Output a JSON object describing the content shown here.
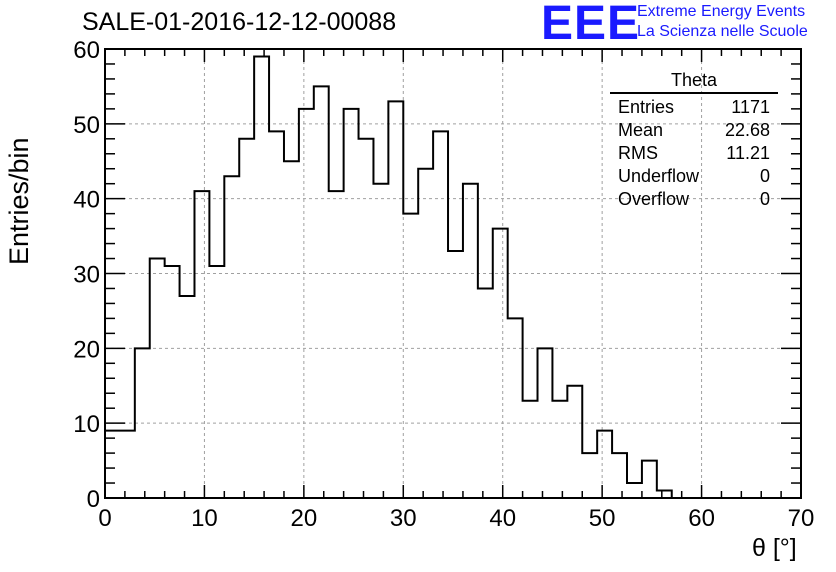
{
  "header": {
    "title": "SALE-01-2016-12-12-00088",
    "logo_mark": "EEE",
    "logo_line1": "Extreme Energy Events",
    "logo_line2": "La Scienza nelle Scuole",
    "logo_color": "#1a1aff"
  },
  "stats_box": {
    "name": "Theta",
    "rows": [
      {
        "label": "Entries",
        "value": "1171"
      },
      {
        "label": "Mean",
        "value": "22.68"
      },
      {
        "label": "RMS",
        "value": "11.21"
      },
      {
        "label": "Underflow",
        "value": "0"
      },
      {
        "label": "Overflow",
        "value": "0"
      }
    ]
  },
  "chart_data": {
    "type": "bar",
    "style": "step-histogram",
    "xlabel": "θ [°]",
    "ylabel": "Entries/bin",
    "xlim": [
      0,
      70
    ],
    "ylim": [
      0,
      60
    ],
    "bin_width": 1.5,
    "bin_start": 0,
    "values": [
      9,
      9,
      20,
      32,
      31,
      27,
      41,
      31,
      43,
      48,
      59,
      49,
      45,
      52,
      55,
      41,
      52,
      48,
      42,
      53,
      38,
      44,
      49,
      33,
      42,
      28,
      36,
      24,
      13,
      20,
      13,
      15,
      6,
      9,
      6,
      2,
      5,
      1
    ],
    "x_ticks": [
      "0",
      "10",
      "20",
      "30",
      "40",
      "50",
      "60",
      "70"
    ],
    "y_ticks": [
      "0",
      "10",
      "20",
      "30",
      "40",
      "50",
      "60"
    ],
    "grid": true,
    "grid_color": "#a0a0a0",
    "line_color": "#000000"
  }
}
